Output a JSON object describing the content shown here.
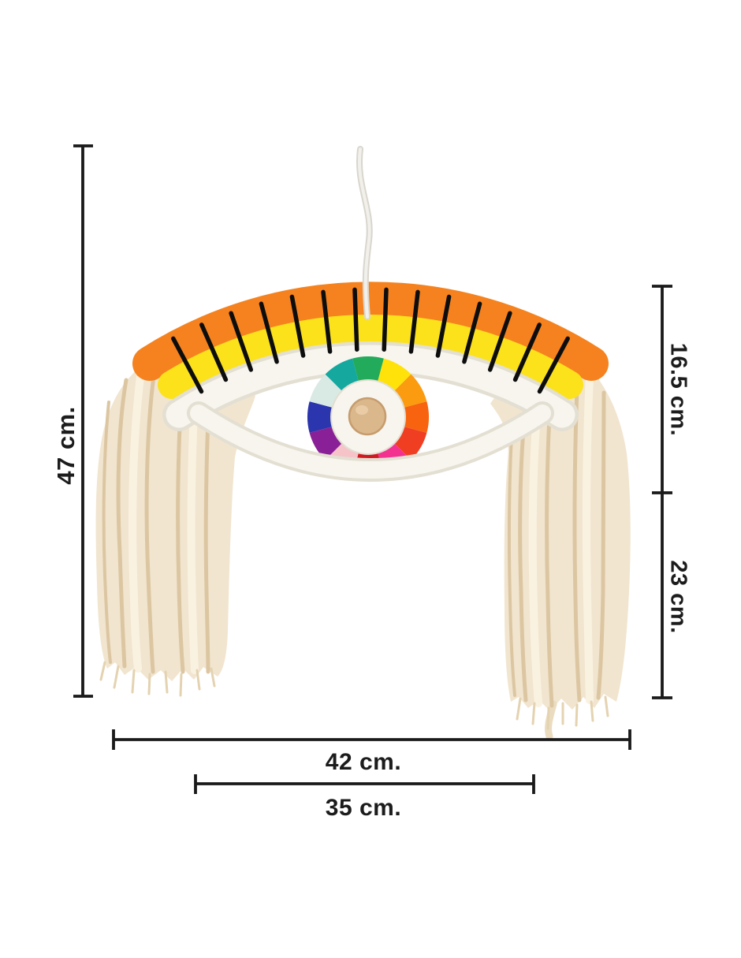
{
  "page": {
    "background": "#ffffff",
    "description": "Product dimension diagram of a rainbow evil-eye macrame wall hanging with tassels"
  },
  "dimensions": {
    "total_height": "47 cm.",
    "upper_section_height": "16.5 cm.",
    "lower_section_height": "23 cm.",
    "total_width": "42 cm.",
    "inner_width": "35 cm."
  },
  "product": {
    "stitch_count": 14,
    "colors": {
      "arc_orange": "#F5821E",
      "arc_yellow": "#FCE21B",
      "rope_white": "#F7F5EE",
      "rope_shadow": "#E3DFD2",
      "band_gap": "#FAF7F0",
      "tassel_cream": "#F1E5CF",
      "tassel_strand": "#DCC6A2",
      "tassel_highlight": "#FAF2E1",
      "tassel_fringe": "#E4D3B1",
      "stitch_black": "#0D0D0D",
      "cord_gray": "#D9D6CE",
      "cord_light": "#F2F0EA",
      "bead_wood": "#DBB78C",
      "bead_edge": "#C69C6D",
      "dimension_line": "#1A1A1A"
    },
    "wheel": {
      "ring_white": "#F7F5EE",
      "ring_edge": "#E2DED1",
      "colors": [
        "#22AB5B",
        "#FFE20A",
        "#FB9B10",
        "#F8630F",
        "#EF3E22",
        "#F3318F",
        "#D01920",
        "#F6C3C9",
        "#8A2097",
        "#2A35AE",
        "#D9E9E4",
        "#14A89E"
      ]
    }
  }
}
